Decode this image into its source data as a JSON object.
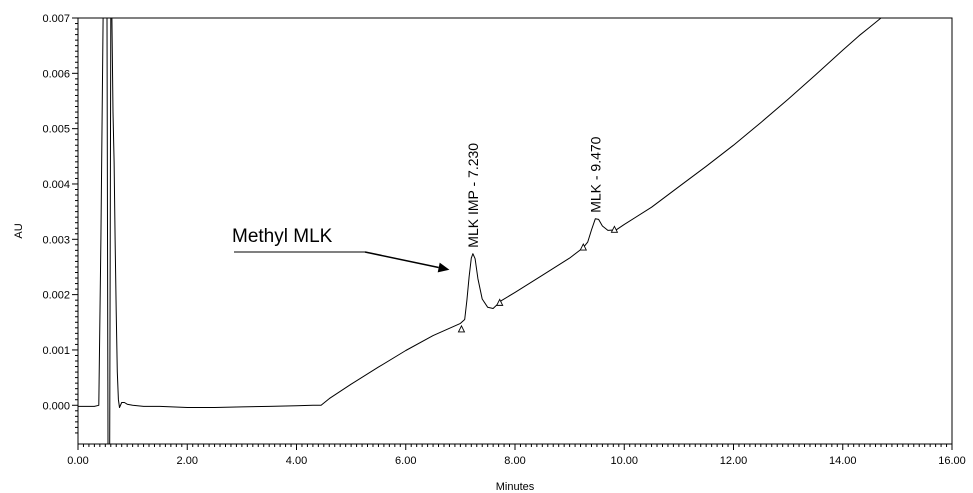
{
  "chart_data": {
    "type": "line",
    "title": "",
    "xlabel": "Minutes",
    "ylabel": "AU",
    "xlim": [
      0,
      16
    ],
    "ylim": [
      -0.0007,
      0.007
    ],
    "xticks": [
      "0.00",
      "2.00",
      "4.00",
      "6.00",
      "8.00",
      "10.00",
      "12.00",
      "14.00",
      "16.00"
    ],
    "yticks": [
      "0.000",
      "0.001",
      "0.002",
      "0.003",
      "0.004",
      "0.005",
      "0.006",
      "0.007"
    ],
    "grid": false,
    "series": [
      {
        "x": [
          0.0,
          0.3,
          0.38,
          0.42,
          0.46,
          0.5,
          0.53,
          0.55,
          0.58,
          0.6,
          0.62,
          0.64,
          0.66,
          0.68,
          0.7,
          0.72,
          0.74,
          0.76,
          0.8,
          0.85,
          0.9,
          1.0,
          1.2,
          1.5,
          2.0,
          2.5,
          3.0,
          3.5,
          4.0,
          4.3,
          4.45,
          4.6,
          5.0,
          5.5,
          6.0,
          6.5,
          7.0,
          7.08,
          7.12,
          7.16,
          7.2,
          7.23,
          7.27,
          7.32,
          7.4,
          7.5,
          7.6,
          7.75,
          8.0,
          8.5,
          9.0,
          9.25,
          9.33,
          9.4,
          9.47,
          9.53,
          9.6,
          9.7,
          9.85,
          10.0,
          10.5,
          11.0,
          11.5,
          12.0,
          12.5,
          13.0,
          13.5,
          14.0,
          14.3,
          14.5,
          14.7
        ],
        "y": [
          -2e-05,
          -2e-05,
          0.0,
          0.003,
          0.0075,
          0.0075,
          0.0075,
          -0.0008,
          -0.0008,
          0.0075,
          0.0075,
          0.0053,
          0.0044,
          0.003,
          0.0017,
          0.0006,
          0.0001,
          -4e-05,
          5e-05,
          5e-05,
          2e-05,
          0.0,
          -2e-05,
          -2e-05,
          -4e-05,
          -4e-05,
          -3e-05,
          -2e-05,
          -1e-05,
          0.0,
          0.0,
          0.00012,
          0.00038,
          0.00069,
          0.00099,
          0.00126,
          0.00148,
          0.00155,
          0.0019,
          0.00232,
          0.00266,
          0.00274,
          0.00265,
          0.00229,
          0.00192,
          0.00177,
          0.00175,
          0.00189,
          0.00204,
          0.00235,
          0.00266,
          0.00285,
          0.00295,
          0.00317,
          0.00337,
          0.00336,
          0.00324,
          0.00316,
          0.00317,
          0.00327,
          0.00358,
          0.00395,
          0.00432,
          0.0047,
          0.00511,
          0.00553,
          0.00597,
          0.00642,
          0.00668,
          0.00684,
          0.00701
        ]
      }
    ],
    "peaks": [
      {
        "label": "MLK IMP - 7.230",
        "rt": 7.23,
        "apex": 0.00274
      },
      {
        "label": "MLK - 9.470",
        "rt": 9.47,
        "apex": 0.00337
      }
    ],
    "integration_markers": [
      {
        "x": 7.02,
        "y": 0.00138
      },
      {
        "x": 7.72,
        "y": 0.00186
      },
      {
        "x": 9.25,
        "y": 0.00286
      },
      {
        "x": 9.82,
        "y": 0.00318
      }
    ],
    "annotation": {
      "text": "Methyl MLK",
      "points_to_x": 6.8,
      "points_to_y": 0.00245
    }
  }
}
